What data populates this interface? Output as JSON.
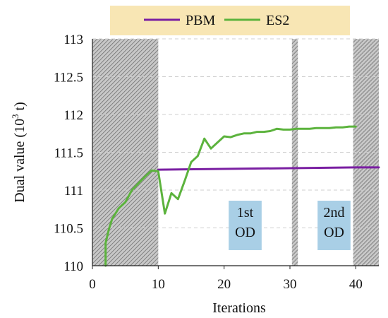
{
  "chart_data": {
    "type": "line",
    "title": "",
    "xlabel": "Iterations",
    "ylabel_parts": {
      "base": "Dual value (10",
      "sup": "3",
      "tail": " t)"
    },
    "xlim": [
      0,
      43.5
    ],
    "ylim": [
      110,
      113
    ],
    "xticks": [
      "0",
      "10",
      "20",
      "30",
      "40"
    ],
    "yticks": [
      "110",
      "110.5",
      "111",
      "111.5",
      "112",
      "112.5",
      "113"
    ],
    "grid": "horizontal-dashed",
    "legend_position": "top",
    "legend_background": "#f8e6b4",
    "shaded_regions": [
      {
        "x": [
          0,
          10
        ]
      },
      {
        "x": [
          30.3,
          31.2
        ]
      },
      {
        "x": [
          39.6,
          43.5
        ]
      }
    ],
    "notes": [
      {
        "lines": [
          "1st",
          "OD"
        ],
        "x": [
          20.7,
          25.7
        ]
      },
      {
        "lines": [
          "2nd",
          "OD"
        ],
        "x": [
          34.2,
          39.2
        ]
      }
    ],
    "note_fill": "#a9cfe6",
    "series": [
      {
        "name": "PBM",
        "color": "#7a1fa2",
        "x": [
          10,
          20,
          30,
          40,
          43.5
        ],
        "y": [
          111.27,
          111.28,
          111.29,
          111.3,
          111.3
        ]
      },
      {
        "name": "ES2",
        "color": "#5cb33d",
        "x": [
          2,
          2,
          2.5,
          3,
          4,
          5,
          6,
          7,
          8,
          9,
          10,
          11,
          12,
          13,
          14,
          15,
          16,
          17,
          18,
          19,
          20,
          21,
          22,
          23,
          24,
          25,
          26,
          27,
          28,
          29,
          30,
          31,
          32,
          33,
          34,
          35,
          36,
          37,
          38,
          39,
          40
        ],
        "y": [
          110.0,
          110.3,
          110.48,
          110.62,
          110.76,
          110.84,
          111.0,
          111.09,
          111.18,
          111.26,
          111.25,
          110.69,
          110.96,
          110.88,
          111.12,
          111.37,
          111.45,
          111.68,
          111.55,
          111.63,
          111.71,
          111.7,
          111.73,
          111.75,
          111.75,
          111.77,
          111.77,
          111.78,
          111.81,
          111.8,
          111.8,
          111.81,
          111.81,
          111.81,
          111.82,
          111.82,
          111.82,
          111.83,
          111.83,
          111.84,
          111.84
        ]
      }
    ]
  }
}
